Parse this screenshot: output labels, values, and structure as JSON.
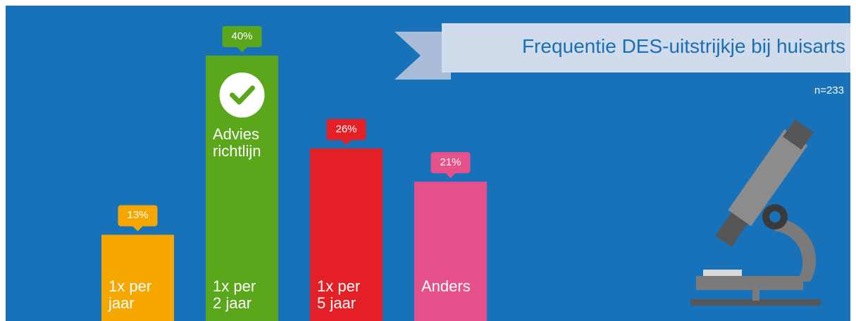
{
  "chart_data": {
    "type": "bar",
    "title": "Frequentie DES-uitstrijkje bij huisarts",
    "subtitle": "n=233",
    "annotation": "Advies\nrichtlijn",
    "categories": [
      "1x per\njaar",
      "1x per\n2 jaar",
      "1x per\n5 jaar",
      "Anders"
    ],
    "values": [
      13,
      40,
      26,
      21
    ],
    "value_labels": [
      "13%",
      "40%",
      "26%",
      "21%"
    ],
    "colors": [
      "#f5a700",
      "#5ba71b",
      "#e41f26",
      "#e6508b"
    ]
  }
}
